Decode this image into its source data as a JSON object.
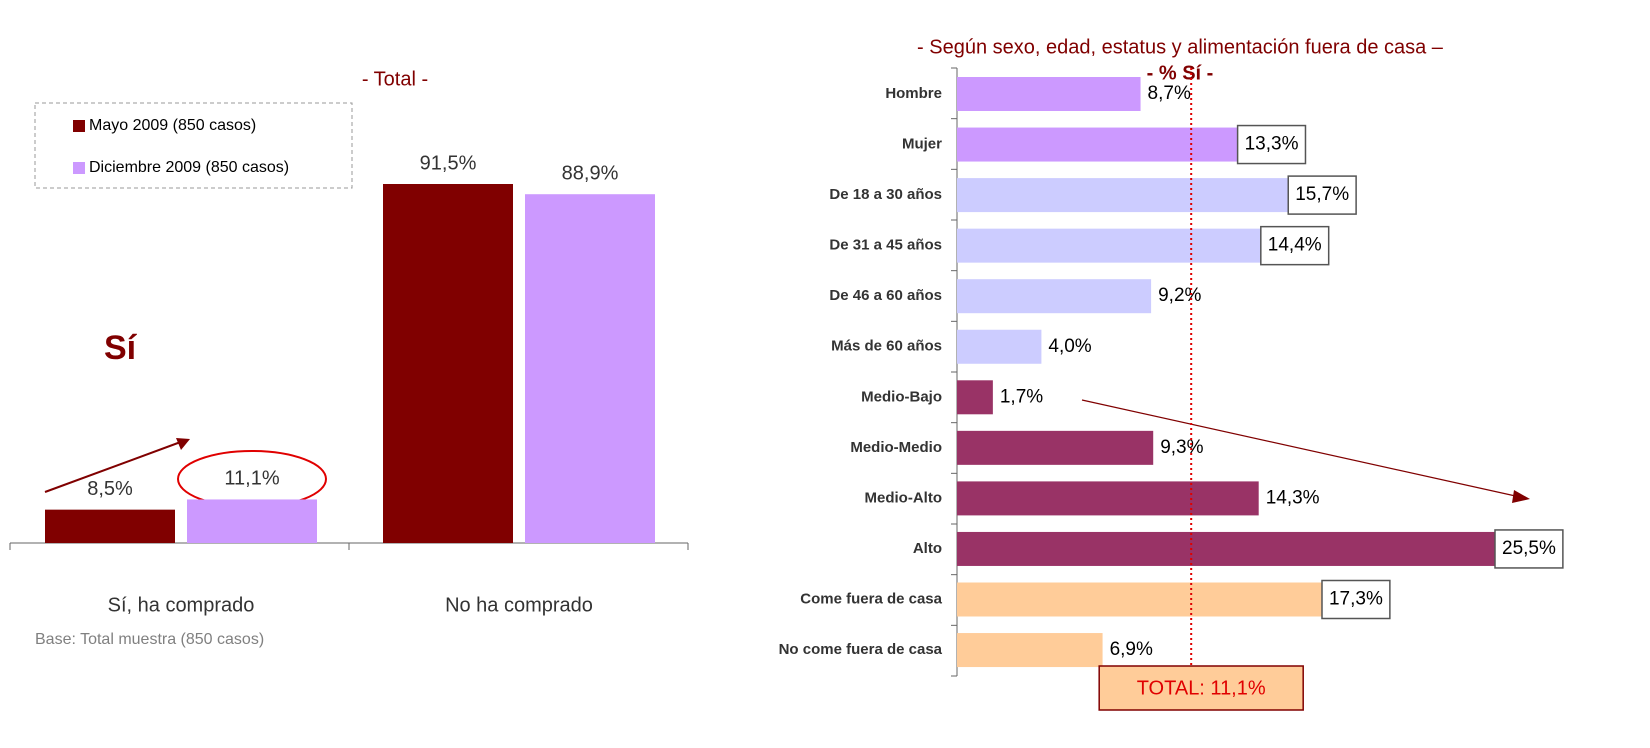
{
  "chart_data": [
    {
      "type": "bar",
      "title": "- Total -",
      "categories": [
        "Sí, ha comprado",
        "No ha comprado"
      ],
      "series": [
        {
          "name": "Mayo 2009 (850 casos)",
          "color": "#800000",
          "values": [
            8.5,
            91.5
          ],
          "value_labels": [
            "8,5%",
            "91,5%"
          ]
        },
        {
          "name": "Diciembre 2009 (850 casos)",
          "color": "#cc99ff",
          "values": [
            11.1,
            88.9
          ],
          "value_labels": [
            "11,1%",
            "88,9%"
          ]
        }
      ],
      "annotations": [
        "Sí",
        "Base: Total muestra (850 casos)"
      ],
      "legend": "top-left"
    },
    {
      "type": "hbar",
      "title": "- Según sexo, edad, estatus y alimentación fuera de casa –",
      "subtitle": "- % Sí -",
      "categories": [
        "Hombre",
        "Mujer",
        "De 18 a 30 años",
        "De 31 a 45 años",
        "De 46 a 60 años",
        "Más de 60 años",
        "Medio-Bajo",
        "Medio-Medio",
        "Medio-Alto",
        "Alto",
        "Come fuera de casa",
        "No come fuera de casa"
      ],
      "values": [
        8.7,
        13.3,
        15.7,
        14.4,
        9.2,
        4.0,
        1.7,
        9.3,
        14.3,
        25.5,
        17.3,
        6.9
      ],
      "value_labels": [
        "8,7%",
        "13,3%",
        "15,7%",
        "14,4%",
        "9,2%",
        "4,0%",
        "1,7%",
        "9,3%",
        "14,3%",
        "25,5%",
        "17,3%",
        "6,9%"
      ],
      "colors": [
        "#cc99ff",
        "#cc99ff",
        "#ccccff",
        "#ccccff",
        "#ccccff",
        "#ccccff",
        "#993366",
        "#993366",
        "#993366",
        "#993366",
        "#ffcc99",
        "#ffcc99"
      ],
      "boxed": [
        false,
        true,
        true,
        true,
        false,
        false,
        false,
        false,
        false,
        true,
        true,
        false
      ],
      "reference": {
        "value": 11.1,
        "label": "TOTAL: 11,1%"
      }
    }
  ]
}
